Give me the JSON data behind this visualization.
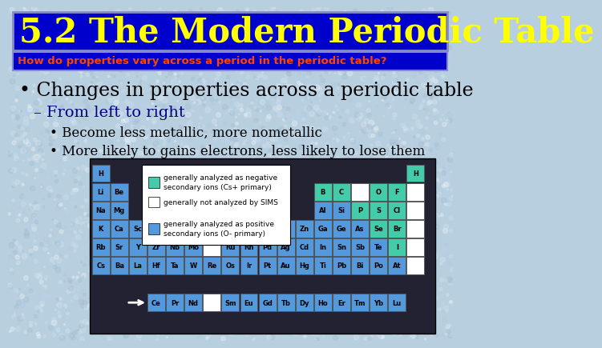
{
  "title": "5.2 The Modern Periodic Table",
  "title_bg": "#0000cc",
  "title_color": "#ffff00",
  "subtitle": "How do properties vary across a period in the periodic table?",
  "subtitle_color": "#ff4400",
  "subtitle_bg": "#0000cc",
  "bg_color": "#b8cfe0",
  "bullet1": "• Changes in properties across a periodic table",
  "bullet2": "– From left to right",
  "bullet3": "• Become less metallic, more nometallic",
  "bullet4": "• More likely to gains electrons, less likely to lose them",
  "text_color": "#000000",
  "dash_color": "#000080",
  "blue_cell": "#5599dd",
  "teal_cell": "#44ccaa",
  "white_cell": "#ffffff",
  "pt_bg": "#222233",
  "legend_text_neg": "generally analyzed as negative\nsecondary ions (Cs+ primary)",
  "legend_text_none": "generally not analyzed by SIMS",
  "legend_text_pos": "generally analyzed as positive\nsecondary ions (O- primary)"
}
